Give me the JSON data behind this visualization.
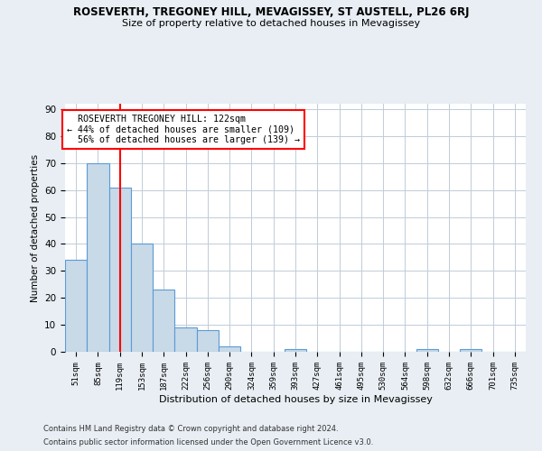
{
  "title": "ROSEVERTH, TREGONEY HILL, MEVAGISSEY, ST AUSTELL, PL26 6RJ",
  "subtitle": "Size of property relative to detached houses in Mevagissey",
  "xlabel": "Distribution of detached houses by size in Mevagissey",
  "ylabel": "Number of detached properties",
  "bar_labels": [
    "51sqm",
    "85sqm",
    "119sqm",
    "153sqm",
    "187sqm",
    "222sqm",
    "256sqm",
    "290sqm",
    "324sqm",
    "359sqm",
    "393sqm",
    "427sqm",
    "461sqm",
    "495sqm",
    "530sqm",
    "564sqm",
    "598sqm",
    "632sqm",
    "666sqm",
    "701sqm",
    "735sqm"
  ],
  "bar_values": [
    34,
    70,
    61,
    40,
    23,
    9,
    8,
    2,
    0,
    0,
    1,
    0,
    0,
    0,
    0,
    0,
    1,
    0,
    1,
    0,
    0
  ],
  "bar_color": "#c8d9e8",
  "bar_edge_color": "#5b9bd5",
  "red_line_index": 2,
  "property_sqm": 122,
  "pct_smaller": 44,
  "n_smaller": 109,
  "pct_larger": 56,
  "n_larger": 139,
  "annotation_label": "ROSEVERTH TREGONEY HILL: 122sqm",
  "ylim": [
    0,
    92
  ],
  "yticks": [
    0,
    10,
    20,
    30,
    40,
    50,
    60,
    70,
    80,
    90
  ],
  "bg_color": "#e8eef4",
  "plot_bg_color": "#ffffff",
  "grid_color": "#c0ccd8",
  "footer_line1": "Contains HM Land Registry data © Crown copyright and database right 2024.",
  "footer_line2": "Contains public sector information licensed under the Open Government Licence v3.0."
}
